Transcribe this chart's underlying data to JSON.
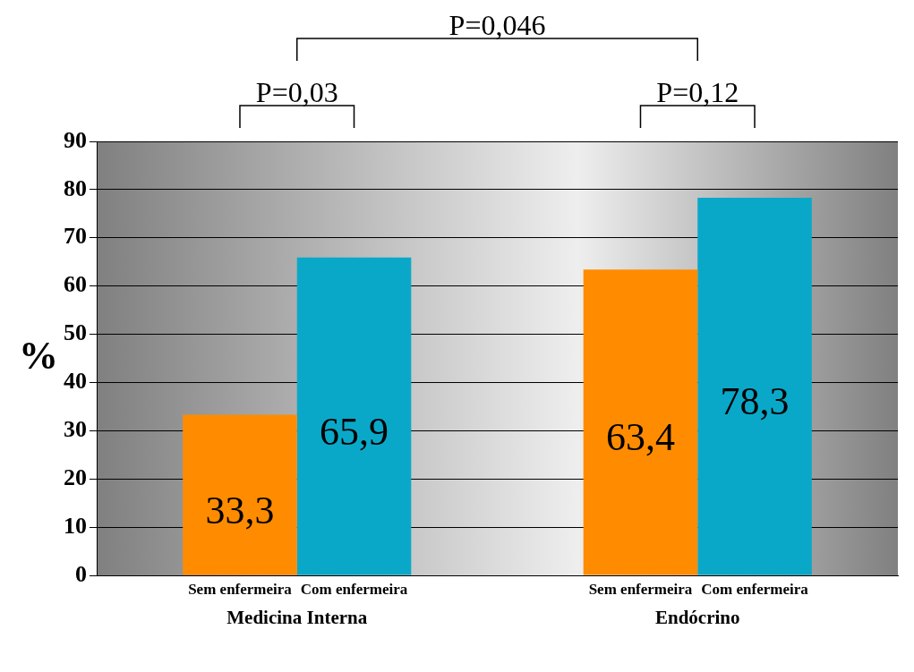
{
  "chart_data": {
    "type": "bar",
    "ylabel": "%",
    "categories": [
      "Medicina Interna",
      "Endócrino"
    ],
    "series": [
      {
        "name": "Sem enfermeira",
        "color": "#ff8c00",
        "values": [
          33.3,
          63.4
        ],
        "value_labels": [
          "33,3",
          "63,4"
        ]
      },
      {
        "name": "Com enfermeira",
        "color": "#0aa8c8",
        "values": [
          65.9,
          78.3
        ],
        "value_labels": [
          "65,9",
          "78,3"
        ]
      }
    ],
    "ylim": [
      0,
      90
    ],
    "yticks": [
      0,
      10,
      20,
      30,
      40,
      50,
      60,
      70,
      80,
      90
    ],
    "grid": "y",
    "legend": false,
    "annotations": [
      "P=0,03",
      "P=0,12",
      "P=0,046"
    ]
  }
}
